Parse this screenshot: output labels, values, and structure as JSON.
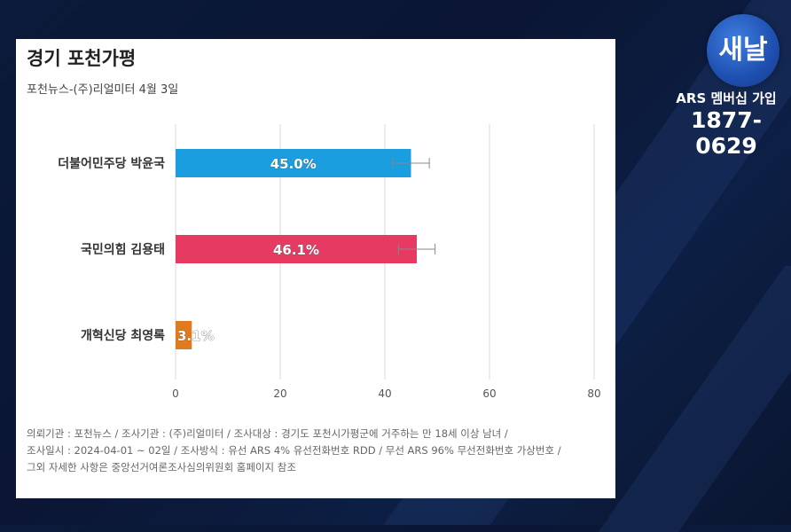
{
  "brand": {
    "logo_text": "새날",
    "membership_label": "ARS 멤버십 가입",
    "phone": "1877-0629"
  },
  "chart_data": {
    "type": "bar",
    "orientation": "horizontal",
    "title": "경기 포천가평",
    "subtitle": "포천뉴스-(주)리얼미터 4월 3일",
    "categories": [
      "더불어민주당 박윤국",
      "국민의힘 김용태",
      "개혁신당 최영록"
    ],
    "values": [
      45.0,
      46.1,
      3.1
    ],
    "value_labels": [
      "45.0%",
      "46.1%",
      "3.1%"
    ],
    "error_margin": 3.5,
    "colors": [
      "#1a9ee0",
      "#e63a62",
      "#e07a1e"
    ],
    "xlim": [
      0,
      80
    ],
    "xticks": [
      0,
      20,
      40,
      60,
      80
    ],
    "grid": true
  },
  "footnote": [
    "의뢰기관 : 포천뉴스 / 조사기관 : (주)리얼미터 / 조사대상 : 경기도 포천시가평군에 거주하는 만 18세 이상 남녀 /",
    "조사일시 : 2024-04-01 ~ 02일 / 조사방식 : 유선 ARS 4% 유선전화번호 RDD / 무선 ARS 96% 무선전화번호 가상번호 /",
    "그외 자세한 사항은 중앙선거여론조사심의위원회 홈페이지 참조"
  ]
}
